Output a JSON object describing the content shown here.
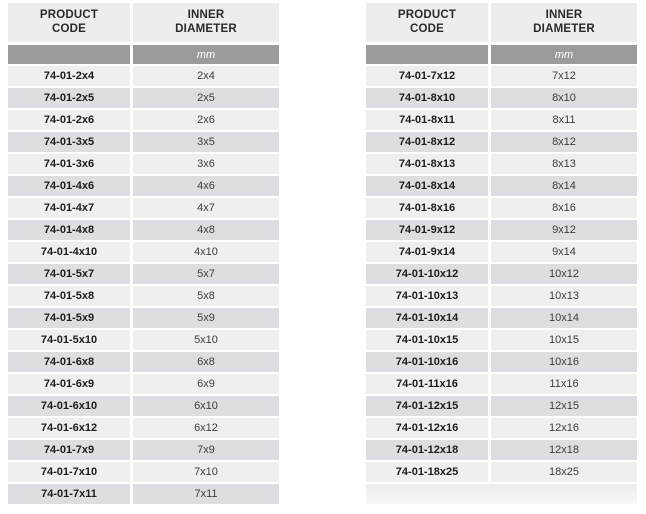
{
  "colors": {
    "header_bg": "#ecedee",
    "header_text": "#2b2a29",
    "band_bg": "#9c9b9b",
    "band_text": "#ffffff",
    "row_light": "#f0efed",
    "row_dark": "#dedde1",
    "code_text": "#1d1c1b",
    "size_text": "#3e3d3c"
  },
  "tables": [
    {
      "name": "left-table",
      "columns": [
        "PRODUCT\nCODE",
        "INNER\nDIAMETER"
      ],
      "unit_row": {
        "col1": "",
        "col2": "mm"
      },
      "rows": [
        [
          "74-01-2x4",
          "2x4"
        ],
        [
          "74-01-2x5",
          "2x5"
        ],
        [
          "74-01-2x6",
          "2x6"
        ],
        [
          "74-01-3x5",
          "3x5"
        ],
        [
          "74-01-3x6",
          "3x6"
        ],
        [
          "74-01-4x6",
          "4x6"
        ],
        [
          "74-01-4x7",
          "4x7"
        ],
        [
          "74-01-4x8",
          "4x8"
        ],
        [
          "74-01-4x10",
          "4x10"
        ],
        [
          "74-01-5x7",
          "5x7"
        ],
        [
          "74-01-5x8",
          "5x8"
        ],
        [
          "74-01-5x9",
          "5x9"
        ],
        [
          "74-01-5x10",
          "5x10"
        ],
        [
          "74-01-6x8",
          "6x8"
        ],
        [
          "74-01-6x9",
          "6x9"
        ],
        [
          "74-01-6x10",
          "6x10"
        ],
        [
          "74-01-6x12",
          "6x12"
        ],
        [
          "74-01-7x9",
          "7x9"
        ],
        [
          "74-01-7x10",
          "7x10"
        ],
        [
          "74-01-7x11",
          "7x11"
        ]
      ]
    },
    {
      "name": "right-table",
      "columns": [
        "PRODUCT\nCODE",
        "INNER\nDIAMETER"
      ],
      "unit_row": {
        "col1": "",
        "col2": "mm"
      },
      "rows": [
        [
          "74-01-7x12",
          "7x12"
        ],
        [
          "74-01-8x10",
          "8x10"
        ],
        [
          "74-01-8x11",
          "8x11"
        ],
        [
          "74-01-8x12",
          "8x12"
        ],
        [
          "74-01-8x13",
          "8x13"
        ],
        [
          "74-01-8x14",
          "8x14"
        ],
        [
          "74-01-8x16",
          "8x16"
        ],
        [
          "74-01-9x12",
          "9x12"
        ],
        [
          "74-01-9x14",
          "9x14"
        ],
        [
          "74-01-10x12",
          "10x12"
        ],
        [
          "74-01-10x13",
          "10x13"
        ],
        [
          "74-01-10x14",
          "10x14"
        ],
        [
          "74-01-10x15",
          "10x15"
        ],
        [
          "74-01-10x16",
          "10x16"
        ],
        [
          "74-01-11x16",
          "11x16"
        ],
        [
          "74-01-12x15",
          "12x15"
        ],
        [
          "74-01-12x16",
          "12x16"
        ],
        [
          "74-01-12x18",
          "12x18"
        ],
        [
          "74-01-18x25",
          "18x25"
        ]
      ]
    }
  ]
}
